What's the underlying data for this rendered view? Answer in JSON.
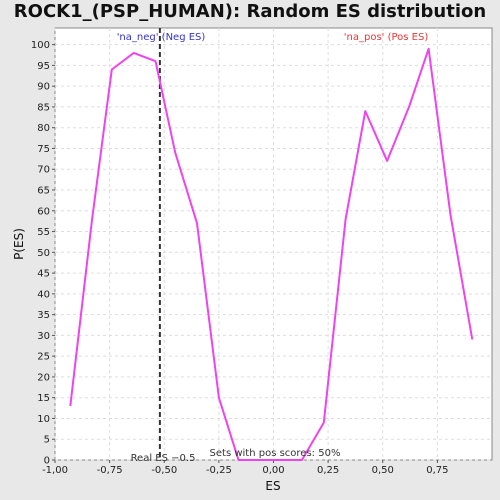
{
  "chart_data": {
    "type": "line",
    "title": "ROCK1_(PSP_HUMAN): Random ES distribution",
    "xlabel": "ES",
    "ylabel": "P(ES)",
    "xlim": [
      -1.0,
      1.0
    ],
    "ylim": [
      0,
      104
    ],
    "grid": true,
    "x_ticks": [
      -1.0,
      -0.75,
      -0.5,
      -0.25,
      0.0,
      0.25,
      0.5,
      0.75
    ],
    "x_tick_labels": [
      "-1,00",
      "-0,75",
      "-0,50",
      "-0,25",
      "0,00",
      "0,25",
      "0,50",
      "0,75"
    ],
    "y_ticks": [
      0,
      5,
      10,
      15,
      20,
      25,
      30,
      35,
      40,
      45,
      50,
      55,
      60,
      65,
      70,
      75,
      80,
      85,
      90,
      95,
      100
    ],
    "y_tick_labels": [
      "0",
      "5",
      "10",
      "15",
      "20",
      "25",
      "30",
      "35",
      "40",
      "45",
      "50",
      "55",
      "60",
      "65",
      "70",
      "75",
      "80",
      "85",
      "90",
      "95",
      "100"
    ],
    "series": [
      {
        "color": "#ee44ee",
        "x": [
          -0.93,
          -0.83,
          -0.74,
          -0.64,
          -0.54,
          -0.45,
          -0.35,
          -0.25,
          -0.16,
          -0.06,
          0.04,
          0.13,
          0.23,
          0.33,
          0.42,
          0.52,
          0.62,
          0.71,
          0.81,
          0.91
        ],
        "y": [
          13,
          58,
          94,
          98,
          96,
          74,
          57,
          15,
          0,
          0,
          0,
          0,
          9,
          58,
          84,
          72,
          85,
          99,
          59,
          29
        ]
      }
    ],
    "real_es": -0.52,
    "annotations": {
      "neg_label": "'na_neg' (Neg ES)",
      "pos_label": "'na_pos' (Pos ES)",
      "real_es_label": "Real ES −0.5",
      "sets_label": "Sets with pos scores: 50%"
    },
    "colors": {
      "neg": "#3333cc",
      "pos": "#ee3333",
      "line": "#ee44ee",
      "real_es_line": "#333333"
    }
  }
}
